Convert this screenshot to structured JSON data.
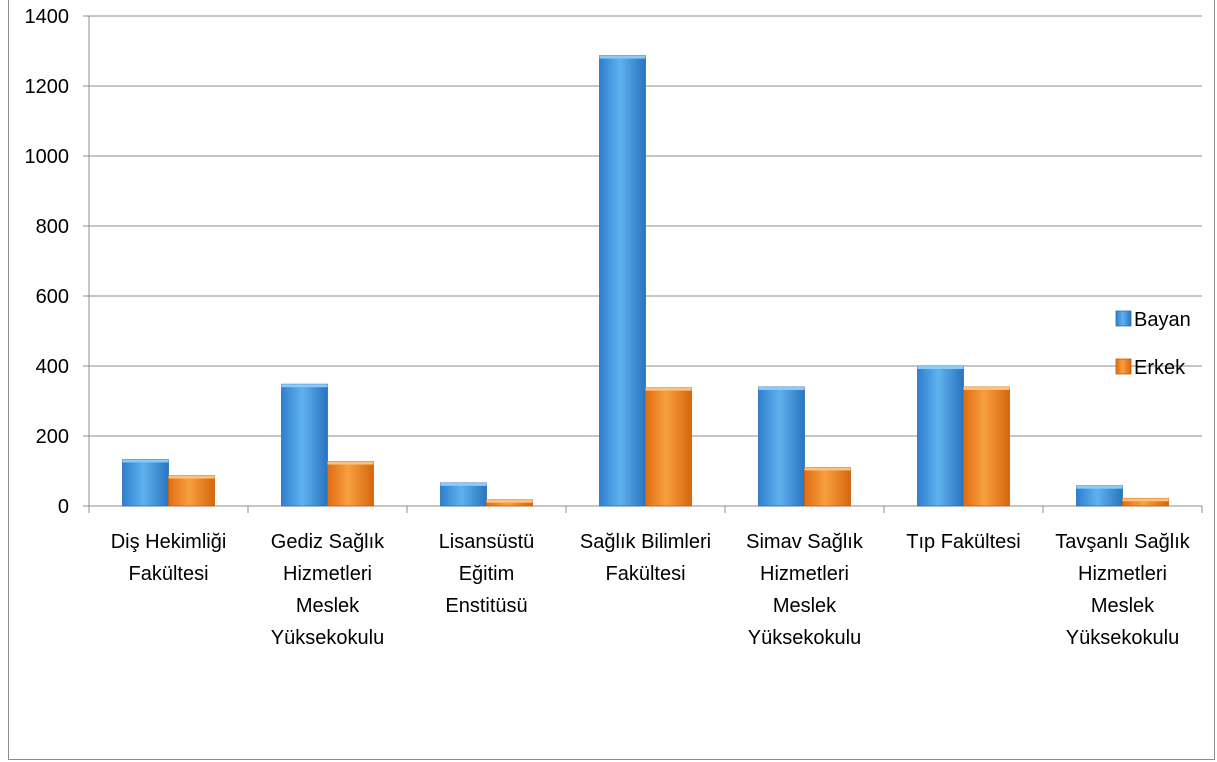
{
  "chart_data": {
    "type": "bar",
    "categories": [
      [
        "Diş Hekimliği",
        "Fakültesi"
      ],
      [
        "Gediz Sağlık",
        "Hizmetleri",
        "Meslek",
        "Yüksekokulu"
      ],
      [
        "Lisansüstü",
        "Eğitim",
        "Enstitüsü"
      ],
      [
        "Sağlık Bilimleri",
        "Fakültesi"
      ],
      [
        "Simav Sağlık",
        "Hizmetleri",
        "Meslek",
        "Yüksekokulu"
      ],
      [
        "Tıp Fakültesi"
      ],
      [
        "Tavşanlı Sağlık",
        "Hizmetleri",
        "Meslek",
        "Yüksekokulu"
      ]
    ],
    "series": [
      {
        "name": "Bayan",
        "values": [
          133,
          348,
          66,
          1287,
          340,
          400,
          58
        ],
        "color": "#4a9be0"
      },
      {
        "name": "Erkek",
        "values": [
          87,
          127,
          18,
          338,
          110,
          340,
          22
        ],
        "color": "#f08a24"
      }
    ],
    "title": "",
    "xlabel": "",
    "ylabel": "",
    "ylim": [
      0,
      1400
    ],
    "yticks": [
      "0",
      "200",
      "400",
      "600",
      "800",
      "1000",
      "1200",
      "1400"
    ],
    "grid": true,
    "legend_position": "right"
  }
}
